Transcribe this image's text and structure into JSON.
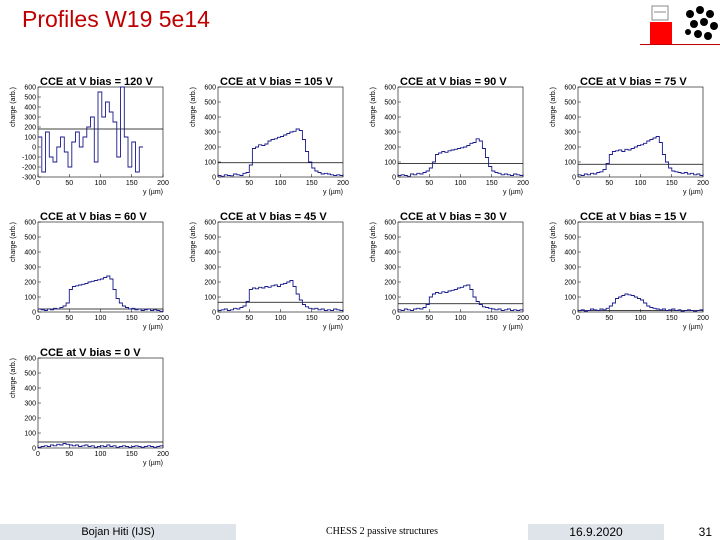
{
  "page": {
    "title": "Profiles W19 5e14"
  },
  "logo": {
    "icon": "institute-logo-icon",
    "accent_color": "#ff0000"
  },
  "footer": {
    "author": "Bojan Hiti (IJS)",
    "topic": "CHESS 2 passive structures",
    "date": "16.9.2020",
    "page_number": "31"
  },
  "chart_data": [
    {
      "type": "line",
      "title": "CCE at V bias = 120 V",
      "xlabel": "y (µm)",
      "ylabel": "charge (arb.)",
      "xlim": [
        0,
        200
      ],
      "ylim": [
        -300,
        600
      ],
      "xticks": [
        0,
        50,
        100,
        150,
        200
      ],
      "yticks": [
        -300,
        -200,
        -100,
        0,
        100,
        200,
        300,
        400,
        500,
        600
      ],
      "grid": false,
      "threshold": 180,
      "series": [
        {
          "x": [
            0,
            6,
            12,
            18,
            24,
            30,
            36,
            42,
            48,
            54,
            60,
            66,
            72,
            78,
            84,
            90,
            96,
            102,
            108,
            114,
            120,
            126,
            132,
            138,
            144,
            150,
            156,
            162
          ],
          "y": [
            100,
            -250,
            150,
            -100,
            -150,
            0,
            100,
            -50,
            -200,
            50,
            150,
            0,
            100,
            200,
            300,
            -150,
            550,
            300,
            450,
            350,
            250,
            -100,
            600,
            100,
            -200,
            50,
            -250,
            0
          ]
        }
      ]
    },
    {
      "type": "line",
      "title": "CCE at V bias = 105 V",
      "xlabel": "y (µm)",
      "ylabel": "charge (arb.)",
      "xlim": [
        0,
        200
      ],
      "ylim": [
        0,
        600
      ],
      "xticks": [
        0,
        50,
        100,
        150,
        200
      ],
      "yticks": [
        0,
        100,
        200,
        300,
        400,
        500,
        600
      ],
      "grid": false,
      "threshold": 95,
      "series": [
        {
          "x": [
            0,
            5,
            10,
            15,
            20,
            25,
            30,
            35,
            40,
            45,
            50,
            55,
            60,
            65,
            70,
            75,
            80,
            85,
            90,
            95,
            100,
            105,
            110,
            115,
            120,
            125,
            130,
            135,
            140,
            145,
            150,
            155,
            160,
            165,
            170,
            175,
            180,
            185,
            190,
            195,
            200
          ],
          "y": [
            10,
            5,
            15,
            10,
            8,
            20,
            15,
            10,
            25,
            30,
            80,
            190,
            200,
            215,
            210,
            220,
            240,
            250,
            255,
            265,
            270,
            280,
            290,
            300,
            305,
            320,
            310,
            250,
            170,
            100,
            60,
            40,
            30,
            20,
            25,
            20,
            15,
            10,
            15,
            10,
            5
          ]
        }
      ]
    },
    {
      "type": "line",
      "title": "CCE at V bias = 90 V",
      "xlabel": "y (µm)",
      "ylabel": "charge (arb.)",
      "xlim": [
        0,
        200
      ],
      "ylim": [
        0,
        600
      ],
      "xticks": [
        0,
        50,
        100,
        150,
        200
      ],
      "yticks": [
        0,
        100,
        200,
        300,
        400,
        500,
        600
      ],
      "grid": false,
      "threshold": 90,
      "series": [
        {
          "x": [
            0,
            5,
            10,
            15,
            20,
            25,
            30,
            35,
            40,
            45,
            50,
            55,
            60,
            65,
            70,
            75,
            80,
            85,
            90,
            95,
            100,
            105,
            110,
            115,
            120,
            125,
            130,
            135,
            140,
            145,
            150,
            155,
            160,
            165,
            170,
            175,
            180,
            185,
            190,
            195,
            200
          ],
          "y": [
            10,
            15,
            10,
            5,
            20,
            15,
            25,
            20,
            30,
            40,
            60,
            100,
            150,
            160,
            170,
            165,
            175,
            180,
            185,
            190,
            195,
            200,
            210,
            225,
            230,
            255,
            240,
            190,
            130,
            70,
            40,
            30,
            25,
            15,
            20,
            15,
            10,
            20,
            15,
            10,
            15
          ]
        }
      ]
    },
    {
      "type": "line",
      "title": "CCE at V bias = 75 V",
      "xlabel": "y (µm)",
      "ylabel": "charge (arb.)",
      "xlim": [
        0,
        200
      ],
      "ylim": [
        0,
        600
      ],
      "xticks": [
        0,
        50,
        100,
        150,
        200
      ],
      "yticks": [
        0,
        100,
        200,
        300,
        400,
        500,
        600
      ],
      "grid": false,
      "threshold": 85,
      "series": [
        {
          "x": [
            0,
            5,
            10,
            15,
            20,
            25,
            30,
            35,
            40,
            45,
            50,
            55,
            60,
            65,
            70,
            75,
            80,
            85,
            90,
            95,
            100,
            105,
            110,
            115,
            120,
            125,
            130,
            135,
            140,
            145,
            150,
            155,
            160,
            165,
            170,
            175,
            180,
            185,
            190,
            195,
            200
          ],
          "y": [
            15,
            10,
            20,
            15,
            25,
            20,
            30,
            35,
            50,
            90,
            150,
            170,
            175,
            180,
            170,
            185,
            180,
            190,
            200,
            210,
            215,
            225,
            240,
            250,
            260,
            270,
            230,
            150,
            100,
            60,
            40,
            35,
            30,
            25,
            30,
            20,
            25,
            15,
            20,
            10,
            15
          ]
        }
      ]
    },
    {
      "type": "line",
      "title": "CCE at V bias = 60 V",
      "xlabel": "y (µm)",
      "ylabel": "charge (arb.)",
      "xlim": [
        0,
        200
      ],
      "ylim": [
        0,
        600
      ],
      "xticks": [
        0,
        50,
        100,
        150,
        200
      ],
      "yticks": [
        0,
        100,
        200,
        300,
        400,
        500,
        600
      ],
      "grid": false,
      "threshold": 20,
      "series": [
        {
          "x": [
            0,
            5,
            10,
            15,
            20,
            25,
            30,
            35,
            40,
            45,
            50,
            55,
            60,
            65,
            70,
            75,
            80,
            85,
            90,
            95,
            100,
            105,
            110,
            115,
            120,
            125,
            130,
            135,
            140,
            145,
            150,
            155,
            160,
            165,
            170,
            175,
            180,
            185,
            190,
            195,
            200
          ],
          "y": [
            20,
            15,
            10,
            20,
            15,
            25,
            20,
            30,
            40,
            60,
            150,
            170,
            175,
            180,
            185,
            190,
            200,
            205,
            210,
            215,
            220,
            230,
            240,
            220,
            150,
            90,
            60,
            40,
            30,
            20,
            25,
            15,
            20,
            10,
            15,
            20,
            10,
            15,
            10,
            5,
            10
          ]
        }
      ]
    },
    {
      "type": "line",
      "title": "CCE at V bias = 45 V",
      "xlabel": "y (µm)",
      "ylabel": "charge (arb.)",
      "xlim": [
        0,
        200
      ],
      "ylim": [
        0,
        600
      ],
      "xticks": [
        0,
        50,
        100,
        150,
        200
      ],
      "yticks": [
        0,
        100,
        200,
        300,
        400,
        500,
        600
      ],
      "grid": false,
      "threshold": 65,
      "series": [
        {
          "x": [
            0,
            5,
            10,
            15,
            20,
            25,
            30,
            35,
            40,
            45,
            50,
            55,
            60,
            65,
            70,
            75,
            80,
            85,
            90,
            95,
            100,
            105,
            110,
            115,
            120,
            125,
            130,
            135,
            140,
            145,
            150,
            155,
            160,
            165,
            170,
            175,
            180,
            185,
            190,
            195,
            200
          ],
          "y": [
            10,
            15,
            20,
            10,
            15,
            25,
            20,
            30,
            40,
            70,
            150,
            160,
            155,
            165,
            160,
            170,
            165,
            175,
            180,
            170,
            185,
            190,
            200,
            210,
            170,
            120,
            80,
            50,
            35,
            25,
            20,
            25,
            15,
            20,
            10,
            15,
            10,
            20,
            15,
            10,
            5
          ]
        }
      ]
    },
    {
      "type": "line",
      "title": "CCE at V bias = 30 V",
      "xlabel": "y (µm)",
      "ylabel": "charge (arb.)",
      "xlim": [
        0,
        200
      ],
      "ylim": [
        0,
        600
      ],
      "xticks": [
        0,
        50,
        100,
        150,
        200
      ],
      "yticks": [
        0,
        100,
        200,
        300,
        400,
        500,
        600
      ],
      "grid": false,
      "threshold": 55,
      "series": [
        {
          "x": [
            0,
            5,
            10,
            15,
            20,
            25,
            30,
            35,
            40,
            45,
            50,
            55,
            60,
            65,
            70,
            75,
            80,
            85,
            90,
            95,
            100,
            105,
            110,
            115,
            120,
            125,
            130,
            135,
            140,
            145,
            150,
            155,
            160,
            165,
            170,
            175,
            180,
            185,
            190,
            195,
            200
          ],
          "y": [
            15,
            10,
            20,
            15,
            10,
            20,
            25,
            20,
            30,
            50,
            100,
            120,
            130,
            125,
            135,
            130,
            140,
            145,
            150,
            160,
            165,
            175,
            180,
            150,
            100,
            70,
            50,
            35,
            30,
            25,
            20,
            15,
            20,
            10,
            15,
            20,
            10,
            15,
            10,
            15,
            10
          ]
        }
      ]
    },
    {
      "type": "line",
      "title": "CCE at V bias = 15 V",
      "xlabel": "y (µm)",
      "ylabel": "charge (arb.)",
      "xlim": [
        0,
        200
      ],
      "ylim": [
        0,
        600
      ],
      "xticks": [
        0,
        50,
        100,
        150,
        200
      ],
      "yticks": [
        0,
        100,
        200,
        300,
        400,
        500,
        600
      ],
      "grid": false,
      "threshold": 10,
      "series": [
        {
          "x": [
            0,
            5,
            10,
            15,
            20,
            25,
            30,
            35,
            40,
            45,
            50,
            55,
            60,
            65,
            70,
            75,
            80,
            85,
            90,
            95,
            100,
            105,
            110,
            115,
            120,
            125,
            130,
            135,
            140,
            145,
            150,
            155,
            160,
            165,
            170,
            175,
            180,
            185,
            190,
            195,
            200
          ],
          "y": [
            10,
            15,
            5,
            10,
            20,
            15,
            10,
            20,
            15,
            25,
            40,
            60,
            90,
            100,
            110,
            120,
            115,
            110,
            100,
            90,
            80,
            60,
            40,
            30,
            25,
            20,
            15,
            20,
            10,
            15,
            20,
            10,
            15,
            5,
            10,
            15,
            10,
            5,
            10,
            15,
            10
          ]
        }
      ]
    },
    {
      "type": "line",
      "title": "CCE at V bias = 0 V",
      "xlabel": "y (µm)",
      "ylabel": "charge (arb.)",
      "xlim": [
        0,
        200
      ],
      "ylim": [
        0,
        600
      ],
      "xticks": [
        0,
        50,
        100,
        150,
        200
      ],
      "yticks": [
        0,
        100,
        200,
        300,
        400,
        500,
        600
      ],
      "grid": false,
      "threshold": 40,
      "series": [
        {
          "x": [
            0,
            5,
            10,
            15,
            20,
            25,
            30,
            35,
            40,
            45,
            50,
            55,
            60,
            65,
            70,
            75,
            80,
            85,
            90,
            95,
            100,
            105,
            110,
            115,
            120,
            125,
            130,
            135,
            140,
            145,
            150,
            155,
            160,
            165,
            170,
            175,
            180,
            185,
            190,
            195,
            200
          ],
          "y": [
            5,
            10,
            15,
            10,
            20,
            15,
            25,
            20,
            30,
            25,
            20,
            15,
            20,
            10,
            15,
            20,
            10,
            15,
            5,
            10,
            15,
            10,
            20,
            10,
            15,
            5,
            10,
            15,
            10,
            5,
            10,
            15,
            10,
            5,
            10,
            15,
            10,
            5,
            10,
            15,
            10
          ]
        }
      ]
    }
  ]
}
